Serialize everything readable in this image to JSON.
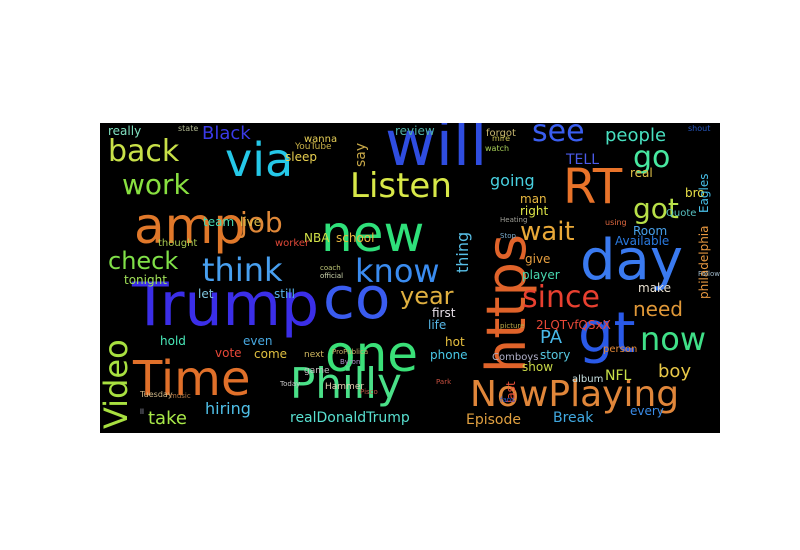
{
  "words": [
    {
      "text": "will",
      "color": "#2f4de0"
    },
    {
      "text": "Trump",
      "color": "#3b2ee8"
    },
    {
      "text": "co",
      "color": "#3a5cf0"
    },
    {
      "text": "amp",
      "color": "#e0782a"
    },
    {
      "text": "new",
      "color": "#2fe07a"
    },
    {
      "text": "via",
      "color": "#25c8e8"
    },
    {
      "text": "day",
      "color": "#3a7af0"
    },
    {
      "text": "RT",
      "color": "#e8732a"
    },
    {
      "text": "one",
      "color": "#3ae078"
    },
    {
      "text": "Time",
      "color": "#e0702a"
    },
    {
      "text": "https",
      "color": "#e0632a"
    },
    {
      "text": "gt",
      "color": "#2a5ae8"
    },
    {
      "text": "Philly",
      "color": "#4ae088"
    },
    {
      "text": "NowPlaying",
      "color": "#e0863a"
    },
    {
      "text": "Listen",
      "color": "#d8e848"
    },
    {
      "text": "know",
      "color": "#3a8cf0"
    },
    {
      "text": "think",
      "color": "#48a0f0"
    },
    {
      "text": "Video",
      "color": "#a8e040"
    },
    {
      "text": "since",
      "color": "#e84030"
    },
    {
      "text": "now",
      "color": "#40e088"
    },
    {
      "text": "see",
      "color": "#3a5ef0"
    },
    {
      "text": "back",
      "color": "#c8e048"
    },
    {
      "text": "work",
      "color": "#88e040"
    },
    {
      "text": "job",
      "color": "#e08838"
    },
    {
      "text": "check",
      "color": "#80e048"
    },
    {
      "text": "go",
      "color": "#48e8a0"
    },
    {
      "text": "got",
      "color": "#b8e048"
    },
    {
      "text": "wait",
      "color": "#e8a838"
    },
    {
      "text": "people",
      "color": "#48e0c0"
    },
    {
      "text": "Black",
      "color": "#3a3ae8"
    },
    {
      "text": "TELL",
      "color": "#4a5ae8"
    },
    {
      "text": "year",
      "color": "#e0b040"
    },
    {
      "text": "need",
      "color": "#e09838"
    },
    {
      "text": "boy",
      "color": "#e8c848"
    },
    {
      "text": "PA",
      "color": "#48b8e8"
    },
    {
      "text": "NFL",
      "color": "#c8e048"
    },
    {
      "text": "going",
      "color": "#48d0e0"
    },
    {
      "text": "thing",
      "color": "#58c0e8"
    },
    {
      "text": "hiring",
      "color": "#50c0e8"
    },
    {
      "text": "take",
      "color": "#a8e848"
    },
    {
      "text": "realDonaldTrump",
      "color": "#58e0d0"
    },
    {
      "text": "Episode",
      "color": "#e0a040"
    },
    {
      "text": "Break",
      "color": "#40a8e0"
    },
    {
      "text": "sleep",
      "color": "#e8d050"
    },
    {
      "text": "say",
      "color": "#c8a848"
    },
    {
      "text": "really",
      "color": "#80e0c0"
    },
    {
      "text": "team",
      "color": "#48d8b0"
    },
    {
      "text": "live",
      "color": "#e0c048"
    },
    {
      "text": "school",
      "color": "#e8b840"
    },
    {
      "text": "NBA",
      "color": "#d0e048"
    },
    {
      "text": "tonight",
      "color": "#a0e058"
    },
    {
      "text": "let",
      "color": "#80c8e0"
    },
    {
      "text": "still",
      "color": "#58b0e8"
    },
    {
      "text": "hold",
      "color": "#48e8b8"
    },
    {
      "text": "vote",
      "color": "#e84838"
    },
    {
      "text": "even",
      "color": "#48a8e0"
    },
    {
      "text": "come",
      "color": "#e0c040"
    },
    {
      "text": "first",
      "color": "#e8e0e8"
    },
    {
      "text": "life",
      "color": "#58b8e8"
    },
    {
      "text": "hot",
      "color": "#e8c040"
    },
    {
      "text": "phone",
      "color": "#48c8e8"
    },
    {
      "text": "show",
      "color": "#c8d848"
    },
    {
      "text": "give",
      "color": "#e8a040"
    },
    {
      "text": "right",
      "color": "#e0e848"
    },
    {
      "text": "man",
      "color": "#e8b840"
    },
    {
      "text": "player",
      "color": "#48d8b0"
    },
    {
      "text": "story",
      "color": "#58c8e0"
    },
    {
      "text": "make",
      "color": "#e8e0d0"
    },
    {
      "text": "every",
      "color": "#3a8ce8"
    },
    {
      "text": "real",
      "color": "#e0c048"
    },
    {
      "text": "Room",
      "color": "#48a0e8"
    },
    {
      "text": "Available",
      "color": "#2a7ae0"
    },
    {
      "text": "philadelphia",
      "color": "#e89840"
    },
    {
      "text": "bro",
      "color": "#e8e048"
    },
    {
      "text": "Eagles",
      "color": "#48c0e8"
    },
    {
      "text": "2LQTvfQSxX",
      "color": "#e84838"
    },
    {
      "text": "last",
      "color": "#e85038"
    },
    {
      "text": "review",
      "color": "#50b0a8"
    },
    {
      "text": "forgot",
      "color": "#c8b870"
    },
    {
      "text": "worker",
      "color": "#e04838"
    },
    {
      "text": "thought",
      "color": "#a8c850"
    },
    {
      "text": "album",
      "color": "#c8e0e0"
    },
    {
      "text": "Quote",
      "color": "#58c0c0"
    },
    {
      "text": "wanna",
      "color": "#e8d058"
    },
    {
      "text": "Comboys",
      "color": "#b0b0c8"
    },
    {
      "text": "person",
      "color": "#e08838"
    },
    {
      "text": "game",
      "color": "#c0c0c0"
    },
    {
      "text": "next",
      "color": "#d0b860"
    },
    {
      "text": "Hammer",
      "color": "#e0d0b0"
    },
    {
      "text": "YouTube",
      "color": "#c8b048"
    },
    {
      "text": "Tuesday",
      "color": "#d0b888"
    },
    {
      "text": "using",
      "color": "#e06840"
    },
    {
      "text": "watch",
      "color": "#a8d058"
    },
    {
      "text": "mire",
      "color": "#c8c050"
    },
    {
      "text": "shout",
      "color": "#2858c0"
    },
    {
      "text": "state",
      "color": "#b0b890"
    },
    {
      "text": "coach",
      "color": "#c0c878"
    },
    {
      "text": "Byron",
      "color": "#a890c8"
    },
    {
      "text": "Pisco",
      "color": "#c05848"
    },
    {
      "text": "ll",
      "color": "#a8a8c0"
    },
    {
      "text": "Park",
      "color": "#c85040"
    },
    {
      "text": "Stop",
      "color": "#78a8c8"
    },
    {
      "text": "picture",
      "color": "#b8a848"
    },
    {
      "text": "Today",
      "color": "#c8c8c8"
    },
    {
      "text": "ProPublica",
      "color": "#c8b068"
    },
    {
      "text": "music",
      "color": "#b07848"
    },
    {
      "text": "official",
      "color": "#d0d8b0"
    },
    {
      "text": "Heating",
      "color": "#a0a098"
    },
    {
      "text": "fans",
      "color": "#2858d0"
    },
    {
      "text": "Follow",
      "color": "#a0b8c8"
    }
  ]
}
